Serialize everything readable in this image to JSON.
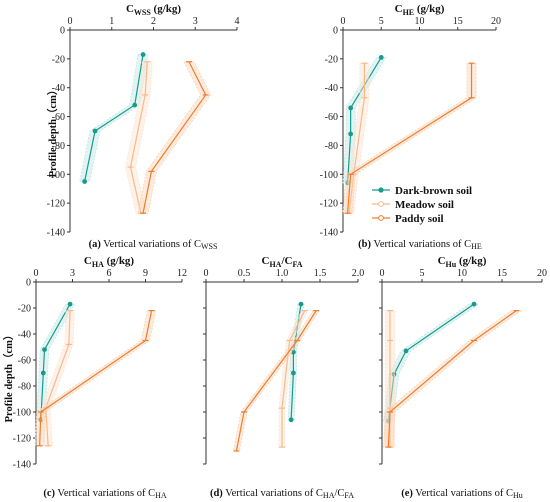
{
  "colors": {
    "dark_brown": "#1a9a8e",
    "meadow": "#f7b98c",
    "paddy": "#ef7d2f",
    "axis": "#333333"
  },
  "legend": [
    {
      "label": "Dark-brown soil",
      "color": "#1a9a8e",
      "marker": "circle"
    },
    {
      "label": "Meadow soil",
      "color": "#f7b98c",
      "marker": "dash"
    },
    {
      "label": "Paddy soil",
      "color": "#ef7d2f",
      "marker": "dash"
    }
  ],
  "y_axis_label": "Profile depth（cm）",
  "chart_data": [
    {
      "type": "line",
      "panel": "a",
      "title": "C_WSS (g/kg)",
      "title_main": "C",
      "title_sub": "WSS",
      "title_unit": " (g/kg)",
      "caption_bold": "(a)",
      "caption_text": " Vertical variations of C",
      "caption_sub": "WSS",
      "xlim": [
        0,
        4
      ],
      "xticks": [
        0,
        1,
        2,
        3,
        4
      ],
      "ylim": [
        -140,
        0
      ],
      "yticks": [
        0,
        -20,
        -40,
        -60,
        -80,
        -100,
        -120,
        -140
      ],
      "series": [
        {
          "name": "Dark-brown soil",
          "x": [
            1.75,
            1.55,
            0.6,
            0.35
          ],
          "y": [
            -17,
            -52,
            -70,
            -105
          ],
          "band": 0.12
        },
        {
          "name": "Meadow soil",
          "x": [
            1.85,
            1.8,
            1.45,
            1.7
          ],
          "y": [
            -22,
            -45,
            -95,
            -127
          ],
          "band": 0.12
        },
        {
          "name": "Paddy soil",
          "x": [
            2.85,
            3.25,
            1.95,
            1.75
          ],
          "y": [
            -22,
            -45,
            -98,
            -127
          ],
          "band": 0.12
        }
      ]
    },
    {
      "type": "line",
      "panel": "b",
      "title": "C_HE (g/kg)",
      "title_main": "C",
      "title_sub": "HE",
      "title_unit": " (g/kg)",
      "caption_bold": "(b)",
      "caption_text": " Vertical variations of C",
      "caption_sub": "HE",
      "xlim": [
        0,
        20
      ],
      "xticks": [
        0,
        5,
        10,
        15,
        20
      ],
      "ylim": [
        -140,
        0
      ],
      "yticks": [
        0,
        -20,
        -40,
        -60,
        -80,
        -100,
        -120,
        -140
      ],
      "series": [
        {
          "name": "Dark-brown soil",
          "x": [
            5.0,
            1.0,
            1.0,
            0.6
          ],
          "y": [
            -19,
            -54,
            -72,
            -106
          ],
          "band": 0.6
        },
        {
          "name": "Meadow soil",
          "x": [
            2.8,
            2.8,
            1.4,
            0.8
          ],
          "y": [
            -23,
            -47,
            -100,
            -127
          ],
          "band": 0.6
        },
        {
          "name": "Paddy soil",
          "x": [
            16.8,
            16.8,
            1.0,
            0.6
          ],
          "y": [
            -23,
            -47,
            -100,
            -127
          ],
          "band": 0.6
        }
      ]
    },
    {
      "type": "line",
      "panel": "c",
      "title": "C_HA (g/kg)",
      "title_main": "C",
      "title_sub": "HA",
      "title_unit": " (g/kg)",
      "caption_bold": "(c)",
      "caption_text": " Vertical variations of C",
      "caption_sub": "HA",
      "xlim": [
        0,
        12
      ],
      "xticks": [
        0,
        3,
        6,
        9,
        12
      ],
      "ylim": [
        -140,
        0
      ],
      "yticks": [
        0,
        -20,
        -40,
        -60,
        -80,
        -100,
        -120,
        -140
      ],
      "series": [
        {
          "name": "Dark-brown soil",
          "x": [
            2.8,
            0.7,
            0.6,
            0.4
          ],
          "y": [
            -17,
            -52,
            -70,
            -106
          ],
          "band": 0.35
        },
        {
          "name": "Meadow soil",
          "x": [
            2.8,
            2.7,
            0.8,
            1.0
          ],
          "y": [
            -22,
            -48,
            -97,
            -126
          ],
          "band": 0.35
        },
        {
          "name": "Paddy soil",
          "x": [
            9.5,
            9.0,
            0.4,
            0.3
          ],
          "y": [
            -22,
            -45,
            -100,
            -126
          ],
          "band": 0.35
        }
      ]
    },
    {
      "type": "line",
      "panel": "d",
      "title": "C_HA/C_FA",
      "title_main": "C",
      "title_sub": "HA",
      "title_slash": "/C",
      "title_sub2": "FA",
      "title_unit": "",
      "caption_bold": "(d)",
      "caption_text": " Vertical variations of C",
      "caption_sub": "HA",
      "caption_text2": "/C",
      "caption_sub2": "FA",
      "xlim": [
        0,
        2.0
      ],
      "xticks": [
        0,
        0.5,
        1.0,
        1.5,
        2.0
      ],
      "xtick_labels": [
        "0",
        "0.5",
        "1.0",
        "1.5",
        "2.0"
      ],
      "ylim": [
        -140,
        0
      ],
      "yticks": [
        0,
        -20,
        -40,
        -60,
        -80,
        -100,
        -120,
        -140
      ],
      "show_y_ticks": false,
      "series": [
        {
          "name": "Dark-brown soil",
          "x": [
            1.25,
            1.15,
            1.15,
            1.12
          ],
          "y": [
            -17,
            -54,
            -70,
            -106
          ],
          "band": 0.04
        },
        {
          "name": "Meadow soil",
          "x": [
            1.3,
            1.1,
            1.0,
            1.0
          ],
          "y": [
            -22,
            -45,
            -97,
            -127
          ],
          "band": 0.04
        },
        {
          "name": "Paddy soil",
          "x": [
            1.45,
            1.2,
            0.5,
            0.4
          ],
          "y": [
            -22,
            -45,
            -100,
            -130
          ],
          "band": 0.04
        }
      ]
    },
    {
      "type": "line",
      "panel": "e",
      "title": "C_Hu (g/kg)",
      "title_main": "C",
      "title_sub": "Hu",
      "title_unit": " (g/kg)",
      "caption_bold": "(e)",
      "caption_text": " Vertical variations of C",
      "caption_sub": "Hu",
      "xlim": [
        0,
        20
      ],
      "xticks": [
        0,
        5,
        10,
        15,
        20
      ],
      "ylim": [
        -140,
        0
      ],
      "yticks": [
        0,
        -20,
        -40,
        -60,
        -80,
        -100,
        -120,
        -140
      ],
      "show_y_ticks": false,
      "series": [
        {
          "name": "Dark-brown soil",
          "x": [
            11.5,
            3.0,
            1.5,
            0.8
          ],
          "y": [
            -17,
            -53,
            -71,
            -107
          ],
          "band": 0.6
        },
        {
          "name": "Meadow soil",
          "x": [
            1.0,
            1.0,
            1.0,
            1.0
          ],
          "y": [
            -22,
            -45,
            -97,
            -127
          ],
          "band": 0.6
        },
        {
          "name": "Paddy soil",
          "x": [
            16.8,
            11.5,
            1.0,
            0.8
          ],
          "y": [
            -22,
            -45,
            -100,
            -127
          ],
          "band": 0.6
        }
      ]
    }
  ]
}
